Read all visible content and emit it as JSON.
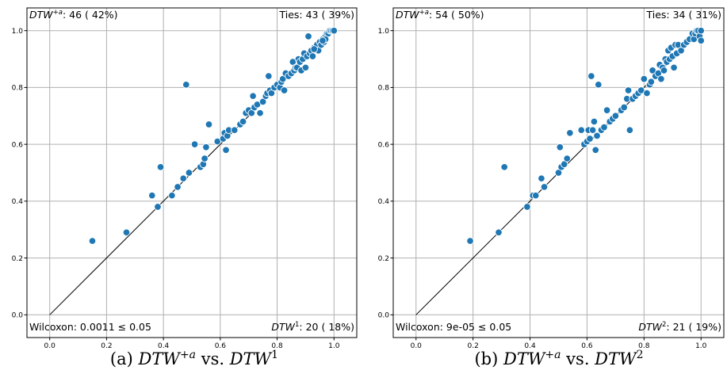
{
  "chart_data": [
    {
      "type": "scatter",
      "caption": {
        "prefix": "(a) ",
        "x_name": "DTW",
        "x_sup": "+a",
        "vs": " vs. ",
        "y_name": "DTW",
        "y_sup": "1"
      },
      "xlim": [
        -0.08,
        1.08
      ],
      "ylim": [
        -0.08,
        1.08
      ],
      "xticks": [
        "0.0",
        "0.2",
        "0.4",
        "0.6",
        "0.8",
        "1.0"
      ],
      "yticks": [
        "0.0",
        "0.2",
        "0.4",
        "0.6",
        "0.8",
        "1.0"
      ],
      "grid": true,
      "diagonal": [
        [
          0,
          0
        ],
        [
          1,
          1
        ]
      ],
      "annotations": {
        "top_left": {
          "name": "DTW",
          "sup": "+a",
          "text": ": 46 ( 42%)"
        },
        "top_right": {
          "text": "Ties: 43 ( 39%)"
        },
        "bottom_left": {
          "text": "Wilcoxon: 0.0011 ≤ 0.05"
        },
        "bottom_right": {
          "name": "DTW",
          "sup": "1",
          "text": ": 20 ( 18%)"
        }
      },
      "points": [
        [
          0.15,
          0.26
        ],
        [
          0.27,
          0.29
        ],
        [
          0.36,
          0.42
        ],
        [
          0.38,
          0.38
        ],
        [
          0.39,
          0.52
        ],
        [
          0.43,
          0.42
        ],
        [
          0.45,
          0.45
        ],
        [
          0.47,
          0.48
        ],
        [
          0.48,
          0.81
        ],
        [
          0.49,
          0.5
        ],
        [
          0.51,
          0.6
        ],
        [
          0.53,
          0.52
        ],
        [
          0.54,
          0.53
        ],
        [
          0.545,
          0.55
        ],
        [
          0.55,
          0.59
        ],
        [
          0.56,
          0.67
        ],
        [
          0.59,
          0.61
        ],
        [
          0.61,
          0.62
        ],
        [
          0.615,
          0.64
        ],
        [
          0.62,
          0.58
        ],
        [
          0.625,
          0.63
        ],
        [
          0.63,
          0.65
        ],
        [
          0.65,
          0.65
        ],
        [
          0.67,
          0.67
        ],
        [
          0.68,
          0.68
        ],
        [
          0.69,
          0.71
        ],
        [
          0.7,
          0.72
        ],
        [
          0.71,
          0.71
        ],
        [
          0.715,
          0.77
        ],
        [
          0.72,
          0.73
        ],
        [
          0.73,
          0.74
        ],
        [
          0.74,
          0.71
        ],
        [
          0.75,
          0.75
        ],
        [
          0.76,
          0.77
        ],
        [
          0.765,
          0.78
        ],
        [
          0.77,
          0.84
        ],
        [
          0.775,
          0.79
        ],
        [
          0.78,
          0.78
        ],
        [
          0.79,
          0.8
        ],
        [
          0.8,
          0.81
        ],
        [
          0.81,
          0.8
        ],
        [
          0.815,
          0.82
        ],
        [
          0.82,
          0.83
        ],
        [
          0.825,
          0.79
        ],
        [
          0.83,
          0.85
        ],
        [
          0.84,
          0.84
        ],
        [
          0.85,
          0.85
        ],
        [
          0.855,
          0.89
        ],
        [
          0.86,
          0.86
        ],
        [
          0.865,
          0.87
        ],
        [
          0.87,
          0.87
        ],
        [
          0.875,
          0.9
        ],
        [
          0.88,
          0.89
        ],
        [
          0.885,
          0.86
        ],
        [
          0.89,
          0.9
        ],
        [
          0.895,
          0.92
        ],
        [
          0.9,
          0.87
        ],
        [
          0.905,
          0.91
        ],
        [
          0.91,
          0.98
        ],
        [
          0.915,
          0.92
        ],
        [
          0.92,
          0.93
        ],
        [
          0.925,
          0.91
        ],
        [
          0.93,
          0.94
        ],
        [
          0.94,
          0.95
        ],
        [
          0.945,
          0.93
        ],
        [
          0.95,
          0.96
        ],
        [
          0.955,
          0.95
        ],
        [
          0.96,
          0.97
        ],
        [
          0.965,
          0.96
        ],
        [
          0.97,
          0.98
        ],
        [
          0.975,
          0.99
        ],
        [
          0.98,
          0.99
        ],
        [
          0.985,
          1.0
        ],
        [
          0.99,
          1.0
        ],
        [
          0.995,
          1.0
        ],
        [
          1.0,
          1.0
        ],
        [
          0.97,
          0.97
        ],
        [
          0.96,
          0.965
        ],
        [
          0.93,
          0.935
        ]
      ]
    },
    {
      "type": "scatter",
      "caption": {
        "prefix": "(b) ",
        "x_name": "DTW",
        "x_sup": "+a",
        "vs": " vs. ",
        "y_name": "DTW",
        "y_sup": "2"
      },
      "xlim": [
        -0.08,
        1.08
      ],
      "ylim": [
        -0.08,
        1.08
      ],
      "xticks": [
        "0.0",
        "0.2",
        "0.4",
        "0.6",
        "0.8",
        "1.0"
      ],
      "yticks": [
        "0.0",
        "0.2",
        "0.4",
        "0.6",
        "0.8",
        "1.0"
      ],
      "grid": true,
      "diagonal": [
        [
          0,
          0
        ],
        [
          1,
          1
        ]
      ],
      "annotations": {
        "top_left": {
          "name": "DTW",
          "sup": "+a",
          "text": ": 54 ( 50%)"
        },
        "top_right": {
          "text": "Ties: 34 ( 31%)"
        },
        "bottom_left": {
          "text": "Wilcoxon: 9e-05 ≤ 0.05"
        },
        "bottom_right": {
          "name": "DTW",
          "sup": "2",
          "text": ": 21 ( 19%)"
        }
      },
      "points": [
        [
          0.19,
          0.26
        ],
        [
          0.29,
          0.29
        ],
        [
          0.31,
          0.52
        ],
        [
          0.39,
          0.38
        ],
        [
          0.41,
          0.42
        ],
        [
          0.42,
          0.42
        ],
        [
          0.44,
          0.48
        ],
        [
          0.45,
          0.45
        ],
        [
          0.5,
          0.5
        ],
        [
          0.505,
          0.59
        ],
        [
          0.51,
          0.52
        ],
        [
          0.52,
          0.53
        ],
        [
          0.53,
          0.55
        ],
        [
          0.54,
          0.64
        ],
        [
          0.58,
          0.65
        ],
        [
          0.59,
          0.6
        ],
        [
          0.6,
          0.61
        ],
        [
          0.605,
          0.65
        ],
        [
          0.61,
          0.62
        ],
        [
          0.615,
          0.84
        ],
        [
          0.62,
          0.65
        ],
        [
          0.625,
          0.68
        ],
        [
          0.63,
          0.58
        ],
        [
          0.635,
          0.63
        ],
        [
          0.64,
          0.81
        ],
        [
          0.65,
          0.65
        ],
        [
          0.66,
          0.66
        ],
        [
          0.67,
          0.72
        ],
        [
          0.68,
          0.68
        ],
        [
          0.69,
          0.69
        ],
        [
          0.7,
          0.7
        ],
        [
          0.72,
          0.72
        ],
        [
          0.73,
          0.73
        ],
        [
          0.74,
          0.76
        ],
        [
          0.745,
          0.79
        ],
        [
          0.75,
          0.65
        ],
        [
          0.76,
          0.76
        ],
        [
          0.77,
          0.77
        ],
        [
          0.78,
          0.78
        ],
        [
          0.79,
          0.79
        ],
        [
          0.8,
          0.83
        ],
        [
          0.81,
          0.78
        ],
        [
          0.82,
          0.81
        ],
        [
          0.825,
          0.82
        ],
        [
          0.83,
          0.86
        ],
        [
          0.84,
          0.84
        ],
        [
          0.85,
          0.85
        ],
        [
          0.855,
          0.88
        ],
        [
          0.86,
          0.83
        ],
        [
          0.865,
          0.87
        ],
        [
          0.87,
          0.86
        ],
        [
          0.875,
          0.9
        ],
        [
          0.88,
          0.89
        ],
        [
          0.885,
          0.93
        ],
        [
          0.89,
          0.9
        ],
        [
          0.895,
          0.94
        ],
        [
          0.9,
          0.91
        ],
        [
          0.905,
          0.87
        ],
        [
          0.91,
          0.95
        ],
        [
          0.915,
          0.92
        ],
        [
          0.92,
          0.95
        ],
        [
          0.93,
          0.93
        ],
        [
          0.94,
          0.95
        ],
        [
          0.95,
          0.96
        ],
        [
          0.96,
          0.97
        ],
        [
          0.97,
          0.99
        ],
        [
          0.975,
          0.97
        ],
        [
          0.98,
          0.99
        ],
        [
          0.985,
          1.0
        ],
        [
          0.99,
          1.0
        ],
        [
          0.995,
          0.98
        ],
        [
          1.0,
          0.965
        ],
        [
          1.0,
          1.0
        ]
      ]
    }
  ]
}
